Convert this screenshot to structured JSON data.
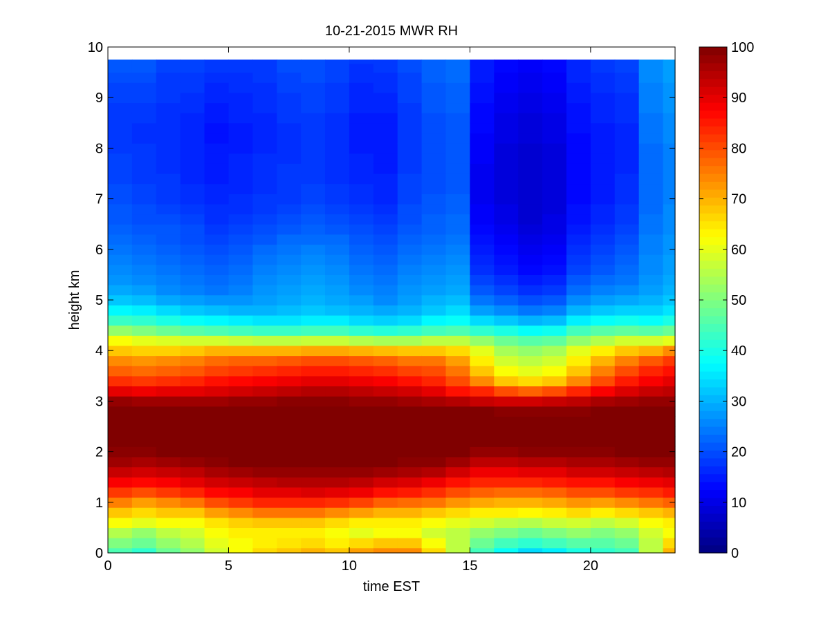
{
  "chart_data": {
    "type": "heatmap",
    "title": "10-21-2015 MWR RH",
    "xlabel": "time EST",
    "ylabel": "height km",
    "xlim": [
      0,
      23.5
    ],
    "ylim": [
      0,
      10
    ],
    "x_ticks": [
      0,
      5,
      10,
      15,
      20
    ],
    "y_ticks": [
      0,
      1,
      2,
      3,
      4,
      5,
      6,
      7,
      8,
      9,
      10
    ],
    "colorbar": {
      "range": [
        0,
        100
      ],
      "ticks": [
        0,
        10,
        20,
        30,
        40,
        50,
        60,
        70,
        80,
        90,
        100
      ],
      "colormap": "jet"
    },
    "time_hours": [
      0.5,
      1.5,
      2.5,
      3.5,
      4.5,
      5.5,
      6.5,
      7.5,
      8.5,
      9.5,
      10.5,
      11.5,
      12.5,
      13.5,
      14.5,
      15.5,
      16.5,
      17.5,
      18.5,
      19.5,
      20.5,
      21.5,
      22.5,
      23.5
    ],
    "heights_km": [
      0,
      0.2,
      0.4,
      0.6,
      0.8,
      1.0,
      1.2,
      1.4,
      1.6,
      1.8,
      2.0,
      2.2,
      2.4,
      2.6,
      2.8,
      3.0,
      3.2,
      3.4,
      3.6,
      3.8,
      4.0,
      4.2,
      4.4,
      4.6,
      4.8,
      5.0,
      5.2,
      5.4,
      5.6,
      5.8,
      6.0,
      6.2,
      6.4,
      6.6,
      6.8,
      7.0,
      7.2,
      7.4,
      7.6,
      7.8,
      8.0,
      8.2,
      8.4,
      8.6,
      8.8,
      9.0,
      9.2,
      9.4,
      9.6,
      9.75
    ],
    "rh_percent_by_time": [
      [
        45,
        50,
        55,
        62,
        68,
        75,
        82,
        88,
        93,
        97,
        99,
        100,
        100,
        100,
        100,
        98,
        90,
        83,
        78,
        74,
        68,
        62,
        52,
        43,
        37,
        32,
        29,
        27,
        26,
        25,
        24,
        23,
        22,
        21,
        21,
        20,
        20,
        19,
        19,
        19,
        18,
        18,
        18,
        18,
        18,
        19,
        19,
        20,
        21,
        21
      ],
      [
        42,
        48,
        52,
        60,
        66,
        72,
        80,
        87,
        92,
        96,
        99,
        100,
        100,
        100,
        100,
        97,
        89,
        82,
        77,
        73,
        67,
        60,
        50,
        42,
        36,
        31,
        28,
        26,
        25,
        24,
        23,
        22,
        21,
        20,
        20,
        19,
        19,
        18,
        18,
        18,
        18,
        17,
        17,
        18,
        18,
        19,
        19,
        20,
        21,
        21
      ],
      [
        48,
        52,
        56,
        62,
        68,
        74,
        82,
        88,
        93,
        97,
        100,
        100,
        100,
        100,
        100,
        97,
        90,
        83,
        78,
        74,
        67,
        59,
        48,
        40,
        34,
        29,
        26,
        25,
        24,
        23,
        22,
        21,
        21,
        20,
        19,
        18,
        18,
        18,
        17,
        17,
        17,
        17,
        17,
        17,
        17,
        18,
        18,
        18,
        19,
        19
      ],
      [
        52,
        55,
        58,
        62,
        68,
        76,
        84,
        90,
        94,
        98,
        100,
        100,
        100,
        100,
        100,
        97,
        90,
        84,
        79,
        75,
        68,
        58,
        46,
        38,
        32,
        28,
        25,
        24,
        23,
        22,
        21,
        20,
        20,
        19,
        18,
        17,
        17,
        16,
        16,
        16,
        16,
        16,
        16,
        16,
        17,
        17,
        18,
        18,
        19,
        19
      ],
      [
        58,
        60,
        62,
        65,
        72,
        80,
        87,
        92,
        96,
        99,
        100,
        100,
        100,
        100,
        100,
        97,
        91,
        86,
        81,
        77,
        70,
        58,
        45,
        37,
        31,
        27,
        24,
        23,
        22,
        21,
        20,
        19,
        18,
        17,
        17,
        16,
        16,
        15,
        15,
        15,
        15,
        14,
        14,
        15,
        15,
        16,
        16,
        17,
        18,
        18
      ],
      [
        62,
        62,
        64,
        67,
        74,
        82,
        88,
        93,
        97,
        100,
        100,
        100,
        100,
        100,
        100,
        98,
        92,
        87,
        82,
        78,
        70,
        57,
        44,
        36,
        30,
        27,
        25,
        24,
        23,
        22,
        21,
        20,
        19,
        18,
        17,
        17,
        16,
        16,
        16,
        16,
        15,
        15,
        15,
        16,
        16,
        16,
        17,
        17,
        18,
        18
      ],
      [
        66,
        64,
        64,
        68,
        76,
        84,
        90,
        94,
        98,
        100,
        100,
        100,
        100,
        100,
        100,
        98,
        93,
        88,
        83,
        78,
        70,
        56,
        43,
        35,
        30,
        28,
        27,
        26,
        25,
        24,
        23,
        21,
        20,
        19,
        18,
        18,
        17,
        17,
        17,
        17,
        16,
        16,
        16,
        16,
        17,
        17,
        17,
        18,
        18,
        18
      ],
      [
        68,
        65,
        64,
        68,
        76,
        84,
        90,
        95,
        98,
        100,
        100,
        100,
        100,
        100,
        100,
        99,
        94,
        89,
        84,
        79,
        70,
        56,
        43,
        35,
        31,
        29,
        28,
        27,
        26,
        25,
        24,
        23,
        21,
        20,
        19,
        18,
        18,
        18,
        18,
        17,
        17,
        17,
        17,
        18,
        18,
        18,
        19,
        19,
        20,
        20
      ],
      [
        70,
        66,
        64,
        68,
        76,
        84,
        91,
        95,
        98,
        100,
        100,
        100,
        100,
        100,
        100,
        99,
        95,
        90,
        85,
        80,
        71,
        57,
        44,
        36,
        32,
        30,
        29,
        28,
        27,
        26,
        25,
        23,
        22,
        21,
        20,
        19,
        19,
        18,
        18,
        18,
        18,
        18,
        18,
        18,
        19,
        19,
        19,
        20,
        20,
        20
      ],
      [
        68,
        64,
        62,
        66,
        74,
        83,
        90,
        95,
        98,
        100,
        100,
        100,
        100,
        100,
        100,
        99,
        95,
        90,
        85,
        80,
        71,
        57,
        44,
        36,
        31,
        29,
        28,
        27,
        26,
        25,
        24,
        23,
        21,
        20,
        19,
        18,
        18,
        17,
        17,
        17,
        17,
        17,
        17,
        17,
        18,
        18,
        18,
        19,
        19,
        19
      ],
      [
        72,
        66,
        60,
        64,
        72,
        81,
        89,
        94,
        98,
        100,
        100,
        100,
        100,
        100,
        100,
        98,
        94,
        89,
        84,
        79,
        70,
        55,
        42,
        34,
        30,
        28,
        26,
        25,
        24,
        23,
        22,
        21,
        20,
        19,
        18,
        17,
        17,
        16,
        16,
        16,
        15,
        15,
        15,
        15,
        16,
        16,
        16,
        17,
        17,
        18
      ],
      [
        74,
        68,
        62,
        64,
        70,
        78,
        86,
        92,
        97,
        100,
        100,
        100,
        100,
        100,
        100,
        98,
        93,
        88,
        83,
        78,
        69,
        54,
        41,
        33,
        29,
        26,
        25,
        24,
        23,
        22,
        21,
        20,
        19,
        18,
        17,
        16,
        16,
        16,
        15,
        15,
        15,
        15,
        15,
        15,
        16,
        16,
        17,
        17,
        18,
        18
      ],
      [
        74,
        68,
        62,
        64,
        70,
        77,
        85,
        91,
        96,
        99,
        100,
        100,
        100,
        100,
        100,
        97,
        92,
        86,
        81,
        76,
        68,
        54,
        42,
        34,
        30,
        28,
        27,
        26,
        25,
        24,
        23,
        22,
        21,
        20,
        20,
        19,
        19,
        19,
        18,
        18,
        18,
        18,
        18,
        18,
        18,
        19,
        19,
        19,
        20,
        20
      ],
      [
        66,
        62,
        58,
        62,
        68,
        76,
        83,
        89,
        95,
        99,
        100,
        100,
        100,
        100,
        100,
        96,
        90,
        84,
        80,
        76,
        68,
        56,
        44,
        37,
        32,
        30,
        28,
        27,
        26,
        25,
        24,
        23,
        22,
        22,
        21,
        21,
        20,
        20,
        20,
        20,
        20,
        20,
        20,
        20,
        21,
        21,
        21,
        22,
        22,
        22
      ],
      [
        56,
        56,
        56,
        60,
        66,
        73,
        80,
        86,
        92,
        97,
        100,
        100,
        100,
        100,
        100,
        95,
        86,
        80,
        76,
        72,
        66,
        56,
        45,
        38,
        34,
        31,
        29,
        28,
        27,
        26,
        25,
        24,
        23,
        23,
        22,
        22,
        21,
        21,
        21,
        21,
        21,
        21,
        21,
        21,
        22,
        22,
        22,
        23,
        23,
        23
      ],
      [
        44,
        48,
        52,
        58,
        64,
        71,
        78,
        84,
        89,
        94,
        98,
        100,
        100,
        100,
        100,
        93,
        84,
        74,
        68,
        64,
        60,
        52,
        42,
        34,
        28,
        24,
        21,
        19,
        17,
        16,
        15,
        14,
        13,
        12,
        12,
        11,
        11,
        11,
        11,
        12,
        12,
        12,
        13,
        13,
        13,
        14,
        14,
        15,
        15,
        15
      ],
      [
        38,
        44,
        50,
        56,
        64,
        70,
        77,
        84,
        89,
        94,
        98,
        100,
        100,
        100,
        99,
        92,
        80,
        68,
        62,
        58,
        54,
        48,
        40,
        32,
        26,
        22,
        19,
        17,
        15,
        14,
        13,
        12,
        11,
        10,
        10,
        9,
        9,
        9,
        9,
        9,
        9,
        10,
        10,
        10,
        11,
        11,
        12,
        12,
        13,
        13
      ],
      [
        34,
        42,
        48,
        55,
        63,
        70,
        77,
        84,
        90,
        95,
        99,
        100,
        100,
        100,
        99,
        92,
        78,
        66,
        60,
        56,
        52,
        46,
        38,
        30,
        24,
        20,
        17,
        15,
        13,
        12,
        11,
        10,
        9,
        8,
        8,
        8,
        8,
        8,
        8,
        8,
        8,
        9,
        9,
        9,
        10,
        10,
        11,
        11,
        12,
        12
      ],
      [
        36,
        44,
        50,
        57,
        64,
        71,
        78,
        85,
        90,
        95,
        99,
        100,
        100,
        100,
        99,
        93,
        80,
        68,
        62,
        58,
        54,
        47,
        39,
        31,
        25,
        21,
        18,
        16,
        14,
        13,
        12,
        11,
        10,
        10,
        9,
        9,
        9,
        9,
        9,
        9,
        9,
        10,
        10,
        10,
        11,
        11,
        12,
        12,
        13,
        13
      ],
      [
        40,
        46,
        52,
        58,
        66,
        73,
        80,
        86,
        92,
        96,
        99,
        100,
        100,
        100,
        99,
        94,
        84,
        74,
        68,
        64,
        60,
        52,
        44,
        36,
        30,
        26,
        23,
        21,
        19,
        18,
        17,
        16,
        15,
        14,
        14,
        13,
        13,
        13,
        13,
        13,
        13,
        13,
        14,
        14,
        14,
        15,
        15,
        16,
        16,
        16
      ],
      [
        42,
        46,
        50,
        56,
        64,
        72,
        80,
        86,
        92,
        96,
        99,
        100,
        100,
        100,
        100,
        96,
        88,
        80,
        75,
        70,
        64,
        55,
        46,
        38,
        32,
        28,
        25,
        23,
        21,
        20,
        19,
        18,
        17,
        16,
        16,
        15,
        15,
        15,
        15,
        15,
        15,
        15,
        15,
        16,
        16,
        16,
        17,
        17,
        18,
        18
      ],
      [
        44,
        48,
        52,
        58,
        66,
        74,
        82,
        88,
        93,
        97,
        100,
        100,
        100,
        100,
        100,
        97,
        91,
        85,
        80,
        75,
        68,
        58,
        47,
        39,
        33,
        29,
        26,
        24,
        23,
        22,
        21,
        20,
        19,
        18,
        18,
        17,
        17,
        17,
        16,
        16,
        16,
        16,
        16,
        17,
        17,
        17,
        18,
        18,
        19,
        19
      ],
      [
        56,
        56,
        58,
        62,
        68,
        76,
        83,
        89,
        94,
        98,
        100,
        100,
        100,
        100,
        100,
        98,
        93,
        88,
        84,
        79,
        70,
        58,
        46,
        38,
        33,
        30,
        28,
        27,
        26,
        26,
        25,
        25,
        24,
        24,
        23,
        23,
        23,
        23,
        23,
        23,
        23,
        24,
        24,
        24,
        25,
        25,
        25,
        26,
        26,
        26
      ],
      [
        70,
        66,
        62,
        64,
        70,
        78,
        85,
        90,
        95,
        98,
        100,
        100,
        100,
        100,
        100,
        98,
        94,
        90,
        86,
        82,
        74,
        60,
        48,
        40,
        35,
        32,
        30,
        29,
        28,
        28,
        27,
        27,
        26,
        26,
        26,
        25,
        25,
        25,
        25,
        25,
        25,
        26,
        26,
        26,
        27,
        27,
        27,
        28,
        28,
        28
      ]
    ]
  }
}
